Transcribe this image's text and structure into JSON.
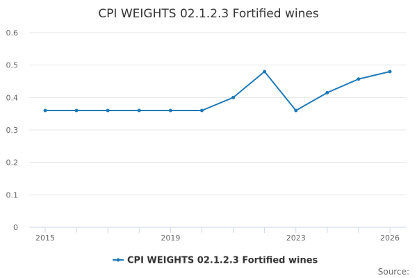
{
  "chart_data": {
    "type": "line",
    "title": "CPI WEIGHTS 02.1.2.3 Fortified wines",
    "xlabel": "",
    "ylabel": "",
    "x": [
      2015,
      2016,
      2017,
      2018,
      2019,
      2020,
      2021,
      2022,
      2023,
      2024,
      2025,
      2026
    ],
    "x_tick_labels": [
      "2015",
      "2019",
      "2023",
      "2026"
    ],
    "y_tick_labels": [
      "0",
      "0.1",
      "0.2",
      "0.3",
      "0.4",
      "0.5",
      "0.6"
    ],
    "ylim": [
      0,
      0.6
    ],
    "grid": true,
    "legend_position": "bottom-center",
    "series": [
      {
        "name": "CPI WEIGHTS 02.1.2.3 Fortified wines",
        "color": "#1f7ab8",
        "values": [
          0.36,
          0.36,
          0.36,
          0.36,
          0.36,
          0.36,
          0.4,
          0.48,
          0.36,
          0.415,
          0.457,
          0.48
        ]
      }
    ]
  },
  "source_label": "Source:"
}
